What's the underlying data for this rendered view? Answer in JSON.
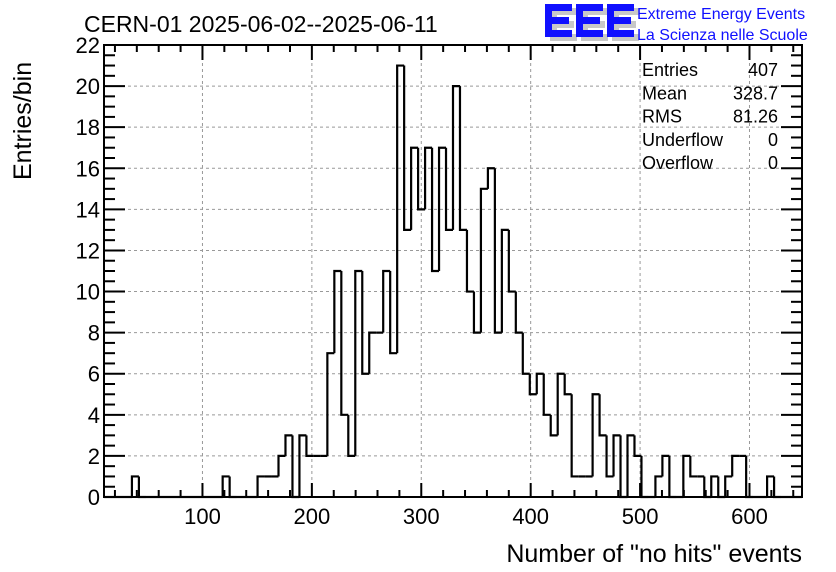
{
  "chart_data": {
    "type": "bar",
    "style": "step-histogram",
    "title": "CERN-01 2025-06-02--2025-06-11",
    "xlabel": "Number of \"no hits\" events",
    "ylabel": "Entries/bin",
    "xlim": [
      10,
      648
    ],
    "ylim": [
      0,
      22
    ],
    "nbins": 100,
    "grid": true,
    "x_ticks": [
      100,
      200,
      300,
      400,
      500,
      600
    ],
    "x_tick_labels": [
      "100",
      "200",
      "300",
      "400",
      "500",
      "600"
    ],
    "y_ticks": [
      0,
      2,
      4,
      6,
      8,
      10,
      12,
      14,
      16,
      18,
      20,
      22
    ],
    "y_tick_labels": [
      "0",
      "2",
      "4",
      "6",
      "8",
      "10",
      "12",
      "14",
      "16",
      "18",
      "20",
      "22"
    ],
    "values": [
      0,
      0,
      0,
      0,
      1,
      0,
      0,
      0,
      0,
      0,
      0,
      0,
      0,
      0,
      0,
      0,
      0,
      1,
      0,
      0,
      0,
      0,
      1,
      1,
      1,
      2,
      3,
      0,
      3,
      2,
      2,
      2,
      7,
      11,
      4,
      2,
      11,
      6,
      8,
      8,
      11,
      7,
      21,
      13,
      17,
      14,
      17,
      11,
      17,
      13,
      20,
      13,
      10,
      8,
      15,
      16,
      8,
      13,
      10,
      8,
      6,
      5,
      6,
      4,
      3,
      6,
      5,
      1,
      1,
      1,
      5,
      3,
      1,
      3,
      0,
      3,
      2,
      0,
      0,
      1,
      2,
      0,
      0,
      2,
      1,
      1,
      0,
      1,
      0,
      1,
      2,
      2,
      0,
      0,
      0,
      1,
      0,
      0,
      0,
      0
    ],
    "line_color": "#000000",
    "stats": [
      {
        "label": "Entries",
        "value": "407"
      },
      {
        "label": "Mean",
        "value": "328.7"
      },
      {
        "label": "RMS",
        "value": "81.26"
      },
      {
        "label": "Underflow",
        "value": "0"
      },
      {
        "label": "Overflow",
        "value": "0"
      }
    ]
  },
  "logo": {
    "letters": "EEE",
    "line1": "Extreme Energy Events",
    "line2": "La Scienza nelle Scuole",
    "color": "#1010ff"
  }
}
